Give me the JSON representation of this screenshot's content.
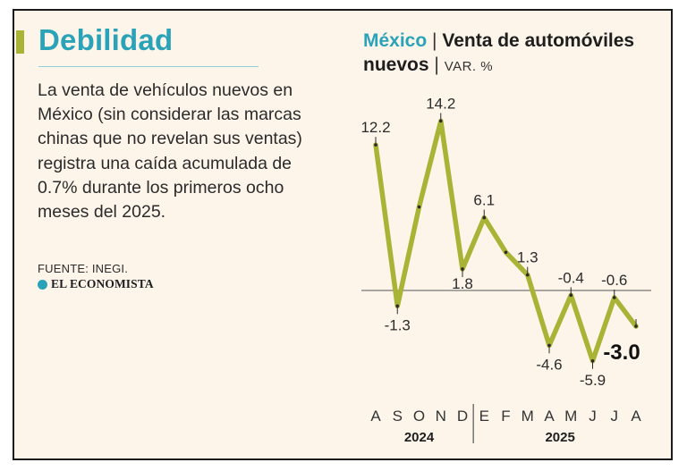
{
  "headline": "Debilidad",
  "body_text": "La venta de vehículos nuevos en México (sin considerar las marcas chinas que no revelan sus ventas) registra una caída acumulada de 0.7% durante los primeros ocho meses del 2025.",
  "source": "FUENTE: INEGI.",
  "brand": "EL ECONOMISTA",
  "chart_title": {
    "country": "México",
    "separator": "|",
    "title": "Venta de automóviles nuevos",
    "unit_separator": "|",
    "unit": "VAR. %"
  },
  "colors": {
    "accent": "#2aa3b9",
    "line": "#a7b436",
    "background": "#fdf5ea"
  },
  "chart_data": {
    "type": "line",
    "title": "Venta de automóviles nuevos",
    "ylabel": "VAR. %",
    "categories": [
      "A",
      "S",
      "O",
      "N",
      "D",
      "E",
      "F",
      "M",
      "A",
      "M",
      "J",
      "J",
      "A"
    ],
    "years": [
      {
        "label": "2024",
        "months": [
          "A",
          "S",
          "O",
          "N",
          "D"
        ]
      },
      {
        "label": "2025",
        "months": [
          "E",
          "F",
          "M",
          "A",
          "M",
          "J",
          "J",
          "A"
        ]
      }
    ],
    "series": [
      {
        "name": "Venta de automóviles nuevos",
        "values": [
          12.2,
          -1.3,
          7.0,
          14.2,
          1.8,
          6.1,
          3.2,
          1.3,
          -4.6,
          -0.4,
          -5.9,
          -0.6,
          -3.0
        ]
      }
    ],
    "data_labels": [
      "12.2",
      "-1.3",
      null,
      "14.2",
      "1.8",
      "6.1",
      null,
      "1.3",
      "-4.6",
      "-0.4",
      "-5.9",
      "-0.6",
      "-3.0"
    ],
    "ylim": [
      -7,
      16
    ],
    "zero_line": true
  }
}
